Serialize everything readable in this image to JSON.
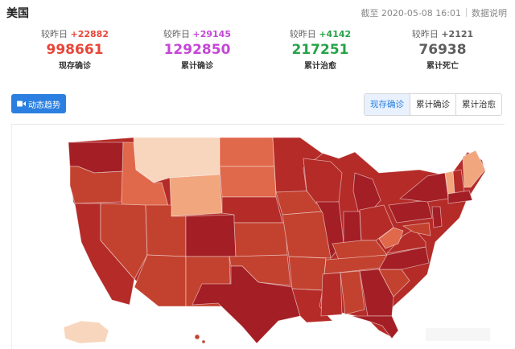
{
  "header": {
    "title": "美国",
    "as_of": "截至 2020-05-08 16:01",
    "explain": "数据说明"
  },
  "stats": [
    {
      "delta_prefix": "较昨日",
      "delta": "+22882",
      "value": "998661",
      "label": "现存确诊",
      "color": "#e8463a"
    },
    {
      "delta_prefix": "较昨日",
      "delta": "+29145",
      "value": "1292850",
      "label": "累计确诊",
      "color": "#c447d6"
    },
    {
      "delta_prefix": "较昨日",
      "delta": "+4142",
      "value": "217251",
      "label": "累计治愈",
      "color": "#27a348"
    },
    {
      "delta_prefix": "较昨日",
      "delta": "+2121",
      "value": "76938",
      "label": "累计死亡",
      "color": "#5f5f5f"
    }
  ],
  "trend_button": {
    "label": "动态趋势",
    "icon": "video-camera-icon"
  },
  "tabs": [
    {
      "label": "现存确诊",
      "active": true
    },
    {
      "label": "累计确诊",
      "active": false
    },
    {
      "label": "累计治愈",
      "active": false
    }
  ],
  "map": {
    "type": "choropleth",
    "region": "United States",
    "colors": {
      "darkest": "#a41e25",
      "dark": "#b42b28",
      "mid": "#c3422f",
      "light": "#e0684b",
      "lighter": "#f1a67e",
      "lightest": "#f8d6bd"
    }
  }
}
